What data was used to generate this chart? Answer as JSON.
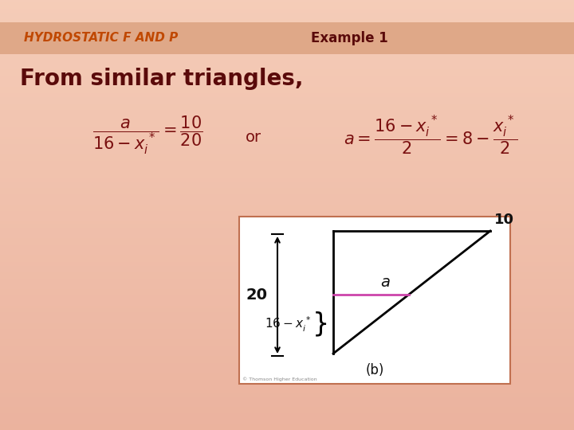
{
  "bg_color_top": "#f0c4a8",
  "bg_color_bot": "#f5d8c0",
  "header_color": "#dfa888",
  "title_text": "HYDROSTATIC F AND P",
  "title_color": "#c04800",
  "example_text": "Example 1",
  "example_color": "#5a0a0a",
  "subtitle_text": "From similar triangles,",
  "subtitle_color": "#5a0a0a",
  "formula_color": "#7a1010",
  "box_bg": "#ffffff",
  "box_border": "#c07050",
  "diagram_label_color": "#111111",
  "diagram_a_color": "#cc44aa",
  "figw": 7.2,
  "figh": 5.4,
  "dpi": 100
}
